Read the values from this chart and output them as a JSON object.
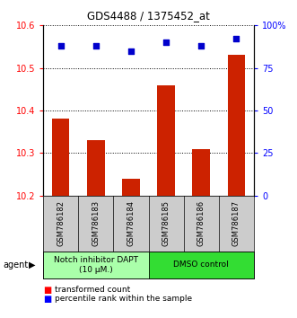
{
  "title": "GDS4488 / 1375452_at",
  "categories": [
    "GSM786182",
    "GSM786183",
    "GSM786184",
    "GSM786185",
    "GSM786186",
    "GSM786187"
  ],
  "bar_values": [
    10.38,
    10.33,
    10.24,
    10.46,
    10.31,
    10.53
  ],
  "bar_color": "#cc2200",
  "dot_values_pct": [
    88,
    88,
    85,
    90,
    88,
    92
  ],
  "dot_color": "#0000cc",
  "ylim_left": [
    10.2,
    10.6
  ],
  "ylim_right": [
    0,
    100
  ],
  "yticks_left": [
    10.2,
    10.3,
    10.4,
    10.5,
    10.6
  ],
  "yticks_right": [
    0,
    25,
    50,
    75,
    100
  ],
  "ytick_labels_right": [
    "0",
    "25",
    "50",
    "75",
    "100%"
  ],
  "groups": [
    {
      "label": "Notch inhibitor DAPT\n(10 μM.)",
      "indices": [
        0,
        1,
        2
      ],
      "color": "#aaffaa"
    },
    {
      "label": "DMSO control",
      "indices": [
        3,
        4,
        5
      ],
      "color": "#33dd33"
    }
  ],
  "agent_label": "agent",
  "legend_bar_label": "transformed count",
  "legend_dot_label": "percentile rank within the sample",
  "tick_area_color": "#cccccc",
  "bar_width": 0.5
}
